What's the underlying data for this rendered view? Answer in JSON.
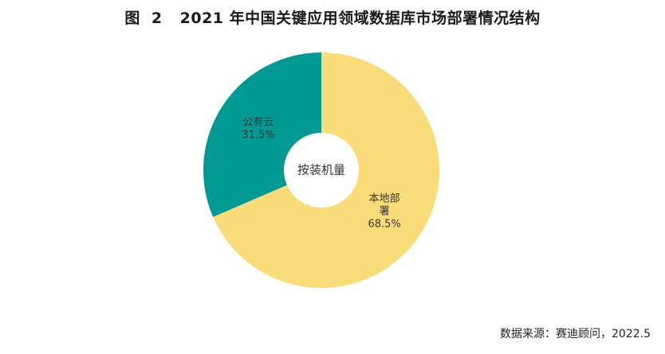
{
  "figure": {
    "label": "图",
    "number": "2",
    "title": "2021 年中国关键应用领域数据库市场部署情况结构"
  },
  "source": "数据来源：赛迪顾问，2022.5",
  "colors": {
    "local": "#F9DC79",
    "cloud": "#009993",
    "hole": "#FFFFFF"
  },
  "chart_data": {
    "type": "pie",
    "center_label": "按装机量",
    "slices": [
      {
        "label_lines": [
          "本地部",
          "署"
        ],
        "value": 68.5,
        "value_label": "68.5%"
      },
      {
        "label_lines": [
          "公有云"
        ],
        "value": 31.5,
        "value_label": "31.5%"
      }
    ]
  }
}
